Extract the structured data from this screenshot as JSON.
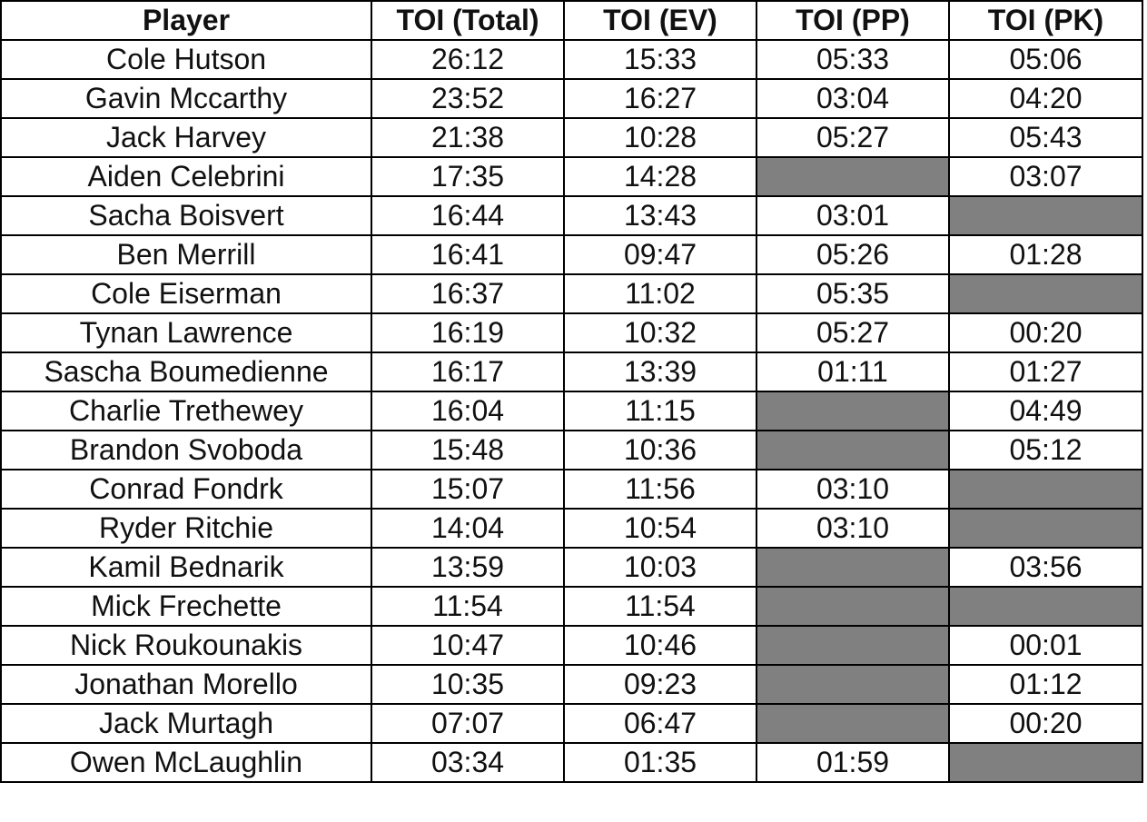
{
  "table": {
    "header": [
      "Player",
      "TOI (Total)",
      "TOI (EV)",
      "TOI (PP)",
      "TOI (PK)"
    ],
    "rows": [
      [
        "Cole Hutson",
        "26:12",
        "15:33",
        "05:33",
        "05:06"
      ],
      [
        "Gavin Mccarthy",
        "23:52",
        "16:27",
        "03:04",
        "04:20"
      ],
      [
        "Jack Harvey",
        "21:38",
        "10:28",
        "05:27",
        "05:43"
      ],
      [
        "Aiden Celebrini",
        "17:35",
        "14:28",
        null,
        "03:07"
      ],
      [
        "Sacha Boisvert",
        "16:44",
        "13:43",
        "03:01",
        null
      ],
      [
        "Ben Merrill",
        "16:41",
        "09:47",
        "05:26",
        "01:28"
      ],
      [
        "Cole Eiserman",
        "16:37",
        "11:02",
        "05:35",
        null
      ],
      [
        "Tynan Lawrence",
        "16:19",
        "10:32",
        "05:27",
        "00:20"
      ],
      [
        "Sascha Boumedienne",
        "16:17",
        "13:39",
        "01:11",
        "01:27"
      ],
      [
        "Charlie Trethewey",
        "16:04",
        "11:15",
        null,
        "04:49"
      ],
      [
        "Brandon Svoboda",
        "15:48",
        "10:36",
        null,
        "05:12"
      ],
      [
        "Conrad Fondrk",
        "15:07",
        "11:56",
        "03:10",
        null
      ],
      [
        "Ryder Ritchie",
        "14:04",
        "10:54",
        "03:10",
        null
      ],
      [
        "Kamil Bednarik",
        "13:59",
        "10:03",
        null,
        "03:56"
      ],
      [
        "Mick Frechette",
        "11:54",
        "11:54",
        null,
        null
      ],
      [
        "Nick Roukounakis",
        "10:47",
        "10:46",
        null,
        "00:01"
      ],
      [
        "Jonathan Morello",
        "10:35",
        "09:23",
        null,
        "01:12"
      ],
      [
        "Jack Murtagh",
        "07:07",
        "06:47",
        null,
        "00:20"
      ],
      [
        "Owen McLaughlin",
        "03:34",
        "01:35",
        "01:59",
        null
      ]
    ]
  }
}
